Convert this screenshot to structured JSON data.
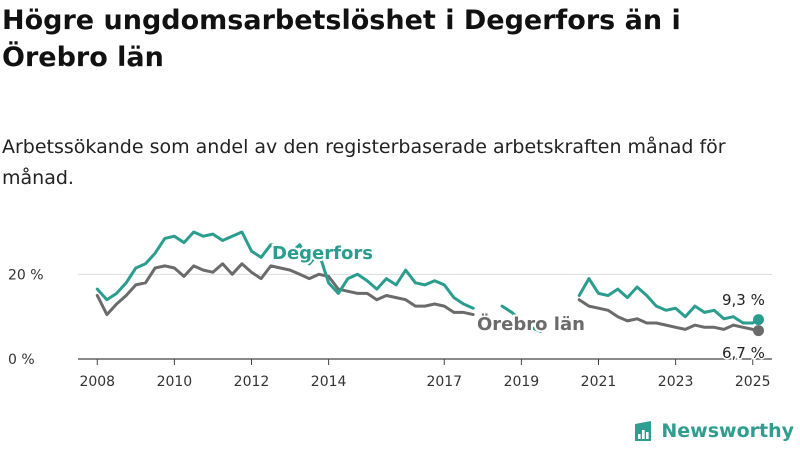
{
  "chart_data": {
    "type": "line",
    "title": "Högre ungdomsarbetslöshet i Degerfors än i Örebro län",
    "subtitle": "Arbetssökande som andel av den registerbaserade arbetskraften månad för månad.",
    "ylim": [
      0,
      30
    ],
    "xlim": [
      2007.5,
      2025.5
    ],
    "y_ticks": [
      {
        "value": 0,
        "label": "0 %"
      },
      {
        "value": 20,
        "label": "20 %"
      }
    ],
    "x_ticks": [
      {
        "value": 2008,
        "label": "2008"
      },
      {
        "value": 2010,
        "label": "2010"
      },
      {
        "value": 2012,
        "label": "2012"
      },
      {
        "value": 2014,
        "label": "2014"
      },
      {
        "value": 2017,
        "label": "2017"
      },
      {
        "value": 2019,
        "label": "2019"
      },
      {
        "value": 2021,
        "label": "2021"
      },
      {
        "value": 2023,
        "label": "2023"
      },
      {
        "value": 2025,
        "label": "2025"
      }
    ],
    "grid": "horizontal",
    "series": [
      {
        "name": "Degerfors",
        "color": "#2a9d8f",
        "end_label": "9,3 %",
        "segments": [
          {
            "x": [
              2008.0,
              2008.25,
              2008.5,
              2008.75,
              2009.0,
              2009.25,
              2009.5,
              2009.75,
              2010.0,
              2010.25,
              2010.5,
              2010.75,
              2011.0,
              2011.25,
              2011.5,
              2011.75,
              2012.0,
              2012.25,
              2012.5,
              2012.75,
              2013.0,
              2013.25,
              2013.5,
              2013.75,
              2014.0,
              2014.25,
              2014.5,
              2014.75,
              2015.0,
              2015.25,
              2015.5,
              2015.75,
              2016.0,
              2016.25,
              2016.5,
              2016.75,
              2017.0,
              2017.25,
              2017.5,
              2017.75
            ],
            "y": [
              16.5,
              14.0,
              15.5,
              18.0,
              21.5,
              22.5,
              25.0,
              28.5,
              29.0,
              27.5,
              30.0,
              29.0,
              29.5,
              28.0,
              29.0,
              30.0,
              25.5,
              24.0,
              27.0,
              26.5,
              25.0,
              27.0,
              22.5,
              25.0,
              18.0,
              15.5,
              19.0,
              20.0,
              18.5,
              16.5,
              19.0,
              17.5,
              21.0,
              18.0,
              17.5,
              18.5,
              17.5,
              14.5,
              13.0,
              12.0
            ]
          },
          {
            "x": [
              2018.5,
              2018.75,
              2019.0,
              2019.25,
              2019.5
            ],
            "y": [
              12.5,
              11.0,
              9.0,
              7.5,
              6.5
            ]
          },
          {
            "x": [
              2020.5,
              2020.75,
              2021.0,
              2021.25,
              2021.5,
              2021.75,
              2022.0,
              2022.25,
              2022.5,
              2022.75,
              2023.0,
              2023.25,
              2023.5,
              2023.75,
              2024.0,
              2024.25,
              2024.5,
              2024.75,
              2025.0,
              2025.15
            ],
            "y": [
              15.0,
              19.0,
              15.5,
              15.0,
              16.5,
              14.5,
              17.0,
              15.0,
              12.5,
              11.5,
              12.0,
              10.0,
              12.5,
              11.0,
              11.5,
              9.5,
              10.0,
              8.5,
              8.5,
              9.3
            ]
          }
        ]
      },
      {
        "name": "Örebro län",
        "color": "#6b6b6b",
        "end_label": "6,7 %",
        "segments": [
          {
            "x": [
              2008.0,
              2008.25,
              2008.5,
              2008.75,
              2009.0,
              2009.25,
              2009.5,
              2009.75,
              2010.0,
              2010.25,
              2010.5,
              2010.75,
              2011.0,
              2011.25,
              2011.5,
              2011.75,
              2012.0,
              2012.25,
              2012.5,
              2012.75,
              2013.0,
              2013.25,
              2013.5,
              2013.75,
              2014.0,
              2014.25,
              2014.5,
              2014.75,
              2015.0,
              2015.25,
              2015.5,
              2015.75,
              2016.0,
              2016.25,
              2016.5,
              2016.75,
              2017.0,
              2017.25,
              2017.5,
              2017.75
            ],
            "y": [
              15.0,
              10.5,
              13.0,
              15.0,
              17.5,
              18.0,
              21.5,
              22.0,
              21.5,
              19.5,
              22.0,
              21.0,
              20.5,
              22.5,
              20.0,
              22.5,
              20.5,
              19.0,
              22.0,
              21.5,
              21.0,
              20.0,
              19.0,
              20.0,
              19.5,
              16.5,
              16.0,
              15.5,
              15.5,
              14.0,
              15.0,
              14.5,
              14.0,
              12.5,
              12.5,
              13.0,
              12.5,
              11.0,
              11.0,
              10.5
            ]
          },
          {
            "x": [
              2020.5,
              2020.75,
              2021.0,
              2021.25,
              2021.5,
              2021.75,
              2022.0,
              2022.25,
              2022.5,
              2022.75,
              2023.0,
              2023.25,
              2023.5,
              2023.75,
              2024.0,
              2024.25,
              2024.5,
              2024.75,
              2025.0,
              2025.15
            ],
            "y": [
              14.0,
              12.5,
              12.0,
              11.5,
              10.0,
              9.0,
              9.5,
              8.5,
              8.5,
              8.0,
              7.5,
              7.0,
              8.0,
              7.5,
              7.5,
              7.0,
              8.0,
              7.5,
              7.0,
              6.7
            ]
          }
        ]
      }
    ]
  },
  "brand": {
    "name": "Newsworthy",
    "icon": "bar-chart-logo-icon"
  }
}
